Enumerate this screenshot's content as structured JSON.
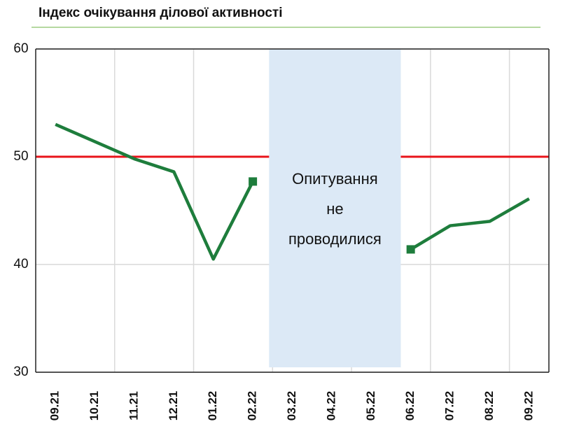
{
  "chart_data": {
    "type": "line",
    "title": "Індекс очікування ділової активності",
    "categories": [
      "09.21",
      "10.21",
      "11.21",
      "12.21",
      "01.22",
      "02.22",
      "03.22",
      "04.22",
      "05.22",
      "06.22",
      "07.22",
      "08.22",
      "09.22"
    ],
    "series": [
      {
        "color": "#1e7d3c",
        "values": [
          53.0,
          51.4,
          49.8,
          48.6,
          40.5,
          47.7,
          null,
          null,
          null,
          41.4,
          43.6,
          44.0,
          46.1
        ]
      }
    ],
    "ylim": [
      30,
      60
    ],
    "yticks": [
      30,
      40,
      50,
      60
    ],
    "grid": true,
    "reference_line": {
      "value": 50,
      "color": "#e8141b"
    },
    "annotation": [
      "Опитування",
      "не",
      "проводилися"
    ]
  }
}
